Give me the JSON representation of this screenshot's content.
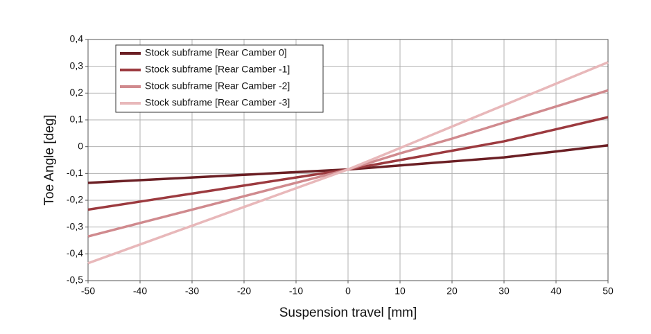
{
  "chart_data": {
    "type": "line",
    "x_label": "Suspension travel [mm]",
    "y_label": "Toe Angle [deg]",
    "x": [
      -50,
      -40,
      -30,
      -20,
      -10,
      0,
      10,
      20,
      30,
      40,
      50
    ],
    "series": [
      {
        "name": "Stock subframe [Rear Camber 0]",
        "color": "#6b1f24",
        "values": [
          -0.135,
          -0.125,
          -0.115,
          -0.105,
          -0.095,
          -0.085,
          -0.07,
          -0.055,
          -0.04,
          -0.018,
          0.005
        ]
      },
      {
        "name": "Stock subframe [Rear Camber -1]",
        "color": "#9c3a3f",
        "values": [
          -0.235,
          -0.205,
          -0.175,
          -0.145,
          -0.115,
          -0.085,
          -0.05,
          -0.015,
          0.02,
          0.065,
          0.11
        ]
      },
      {
        "name": "Stock subframe [Rear Camber -2]",
        "color": "#d08a8e",
        "values": [
          -0.335,
          -0.285,
          -0.235,
          -0.185,
          -0.135,
          -0.085,
          -0.025,
          0.03,
          0.09,
          0.15,
          0.21
        ]
      },
      {
        "name": "Stock subframe [Rear Camber -3]",
        "color": "#e8b8ba",
        "values": [
          -0.435,
          -0.365,
          -0.295,
          -0.225,
          -0.155,
          -0.085,
          -0.005,
          0.075,
          0.155,
          0.235,
          0.315
        ]
      }
    ],
    "xlim": [
      -50,
      50
    ],
    "xticks": [
      -50,
      -40,
      -30,
      -20,
      -10,
      0,
      10,
      20,
      30,
      40,
      50
    ],
    "ylim": [
      -0.5,
      0.4
    ],
    "yticks": [
      {
        "value": -0.5,
        "label": "-0,5"
      },
      {
        "value": -0.4,
        "label": "-0,4"
      },
      {
        "value": -0.3,
        "label": "-0,3"
      },
      {
        "value": -0.2,
        "label": "-0,2"
      },
      {
        "value": -0.1,
        "label": "-0,1"
      },
      0,
      {
        "value": 0.1,
        "label": "0,1"
      },
      {
        "value": 0.2,
        "label": "0,2"
      },
      {
        "value": 0.3,
        "label": "0,3"
      },
      {
        "value": 0.4,
        "label": "0,4"
      }
    ],
    "grid": true,
    "legend": "upper left"
  }
}
